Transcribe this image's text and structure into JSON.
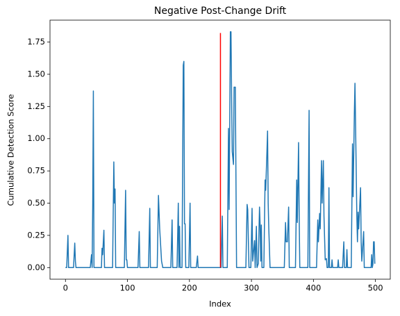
{
  "chart_data": {
    "type": "line",
    "title": "Negative Post-Change Drift",
    "xlabel": "Index",
    "ylabel": "Cumulative Detection Score",
    "color": "#1f77b4",
    "x": [
      0,
      2,
      4,
      5,
      13,
      15,
      16,
      17,
      40,
      42,
      43,
      44,
      45,
      46,
      58,
      59,
      60,
      62,
      63,
      76,
      78,
      79,
      80,
      81,
      95,
      97,
      98,
      99,
      100,
      117,
      119,
      120,
      134,
      136,
      137,
      148,
      150,
      152,
      155,
      157,
      170,
      172,
      173,
      180,
      182,
      183,
      184,
      185,
      188,
      190,
      191,
      192,
      193,
      194,
      199,
      201,
      202,
      211,
      213,
      214,
      251,
      253,
      254,
      261,
      263,
      264,
      266,
      267,
      268,
      269,
      271,
      272,
      274,
      276,
      291,
      293,
      294,
      296,
      299,
      301,
      302,
      305,
      306,
      308,
      309,
      311,
      313,
      314,
      315,
      316,
      317,
      320,
      322,
      323,
      325,
      326,
      327,
      328,
      330,
      353,
      355,
      356,
      358,
      360,
      361,
      371,
      373,
      374,
      376,
      377,
      378,
      391,
      393,
      394,
      405,
      407,
      408,
      410,
      411,
      413,
      414,
      416,
      417,
      419,
      421,
      422,
      424,
      425,
      426,
      429,
      430,
      431,
      439,
      440,
      441,
      447,
      449,
      450,
      453,
      454,
      455,
      461,
      463,
      464,
      466,
      467,
      468,
      470,
      471,
      472,
      473,
      476,
      477,
      478,
      481,
      482,
      493,
      494,
      495,
      496,
      497,
      498,
      499
    ],
    "values": [
      0,
      0,
      0.25,
      0,
      0,
      0.19,
      0.05,
      0,
      0,
      0.1,
      0,
      0.5,
      1.37,
      0,
      0,
      0.15,
      0.1,
      0.29,
      0,
      0,
      0.82,
      0.5,
      0.61,
      0,
      0,
      0.6,
      0.06,
      0.06,
      0,
      0,
      0.28,
      0,
      0,
      0.46,
      0,
      0,
      0.56,
      0.3,
      0.05,
      0,
      0,
      0.37,
      0,
      0,
      0.5,
      0,
      0.32,
      0,
      0,
      1.57,
      1.6,
      0.34,
      0.34,
      0,
      0,
      0.5,
      0,
      0,
      0.09,
      0,
      0,
      0.4,
      0,
      0,
      1.08,
      0.45,
      1.83,
      1.83,
      1.33,
      0.9,
      0.8,
      1.4,
      1.4,
      0,
      0,
      0.49,
      0.45,
      0,
      0,
      0.46,
      0.05,
      0.21,
      0,
      0.32,
      0,
      0.03,
      0.47,
      0.33,
      0.05,
      0.33,
      0,
      0,
      0.68,
      0.6,
      0.9,
      1.06,
      0.5,
      0.3,
      0,
      0,
      0.35,
      0.2,
      0.2,
      0.47,
      0,
      0,
      0.68,
      0.35,
      0.97,
      0.4,
      0,
      0,
      1.22,
      0,
      0,
      0.37,
      0.2,
      0.42,
      0.3,
      0.83,
      0.5,
      0.83,
      0.4,
      0.06,
      0.07,
      0,
      0,
      0.62,
      0,
      0,
      0.06,
      0,
      0,
      0.06,
      0,
      0,
      0.2,
      0,
      0,
      0.14,
      0,
      0,
      0.96,
      0.55,
      1.2,
      1.43,
      1.1,
      0.4,
      0.2,
      0.43,
      0.3,
      0.62,
      0.2,
      0.05,
      0.28,
      0,
      0,
      0.1,
      0,
      0.03,
      0.2,
      0.2,
      0.03
    ],
    "vline": {
      "x": 250,
      "ymin": 0,
      "ymax": 1.82,
      "color": "red"
    },
    "xlim": [
      -24.95,
      523.95
    ],
    "xticks": [
      0,
      100,
      200,
      300,
      400,
      500
    ],
    "ylim": [
      -0.09,
      1.92
    ],
    "yticks": [
      {
        "value": 0,
        "label": "0.00"
      },
      {
        "value": 0.25,
        "label": "0.25"
      },
      {
        "value": 0.5,
        "label": "0.50"
      },
      {
        "value": 0.75,
        "label": "0.75"
      },
      {
        "value": 1,
        "label": "1.00"
      },
      {
        "value": 1.25,
        "label": "1.25"
      },
      {
        "value": 1.5,
        "label": "1.50"
      },
      {
        "value": 1.75,
        "label": "1.75"
      }
    ],
    "grid": false
  }
}
